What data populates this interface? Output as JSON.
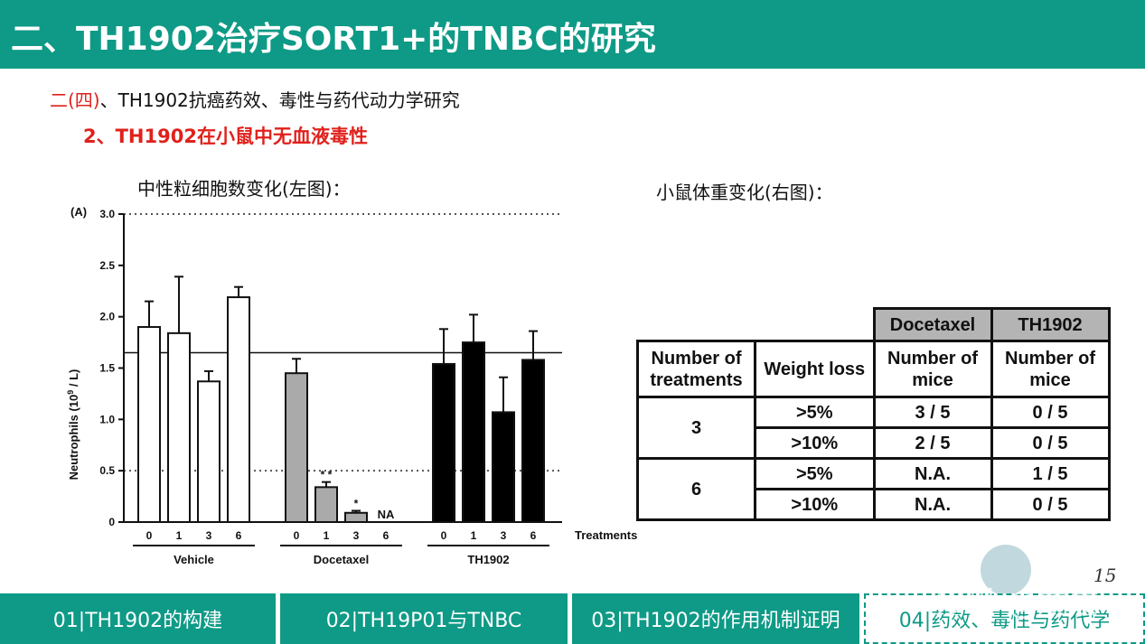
{
  "header": {
    "title": "二、TH1902治疗SORT1+的TNBC的研究"
  },
  "subtitle": {
    "prefix": "二(四)",
    "rest": "、TH1902抗癌药效、毒性与药代动力学研究"
  },
  "subheading": "2、TH1902在小鼠中无血液毒性",
  "left_caption": "中性粒细胞数变化(左图)：",
  "right_caption": "小鼠体重变化(右图)：",
  "chart_data": {
    "type": "bar",
    "panel_label": "(A)",
    "ylabel_main": "Neutrophils (10",
    "ylabel_sup": "9",
    "ylabel_tail": " / L)",
    "xlabel": "Treatments",
    "ylim": [
      0,
      3.0
    ],
    "yticks": [
      "0",
      "0.5",
      "1.0",
      "1.5",
      "2.0",
      "2.5",
      "3.0"
    ],
    "ytick_values": [
      0,
      0.5,
      1.0,
      1.5,
      2.0,
      2.5,
      3.0
    ],
    "reference_solid": 1.65,
    "reference_dotted": [
      0.5,
      3.0
    ],
    "groups": [
      {
        "name": "Vehicle",
        "color": "#ffffff",
        "categories": [
          "0",
          "1",
          "3",
          "6"
        ],
        "values": [
          1.9,
          1.84,
          1.37,
          2.19
        ],
        "errors": [
          0.25,
          0.55,
          0.1,
          0.1
        ],
        "annotations": [
          "",
          "",
          "",
          ""
        ]
      },
      {
        "name": "Docetaxel",
        "color": "#aaaaaa",
        "categories": [
          "0",
          "1",
          "3",
          "6"
        ],
        "values": [
          1.45,
          0.34,
          0.09,
          null
        ],
        "errors": [
          0.14,
          0.05,
          0.02,
          null
        ],
        "annotations": [
          "",
          "* *",
          "*",
          "NA"
        ]
      },
      {
        "name": "TH1902",
        "color": "#000000",
        "categories": [
          "0",
          "1",
          "3",
          "6"
        ],
        "values": [
          1.54,
          1.75,
          1.07,
          1.58
        ],
        "errors": [
          0.34,
          0.27,
          0.34,
          0.28
        ],
        "annotations": [
          "",
          "",
          "",
          ""
        ]
      }
    ]
  },
  "table": {
    "header_top": [
      "Docetaxel",
      "TH1902"
    ],
    "header_col1": "Number of treatments",
    "header_col2": "Weight loss",
    "header_col3": "Number of mice",
    "header_col4": "Number of mice",
    "rows": [
      {
        "treatments": "3",
        "loss": ">5%",
        "docetaxel": "3 / 5",
        "th1902": "0 / 5"
      },
      {
        "treatments": "",
        "loss": ">10%",
        "docetaxel": "2 / 5",
        "th1902": "0 / 5"
      },
      {
        "treatments": "6",
        "loss": ">5%",
        "docetaxel": "N.A.",
        "th1902": "1 / 5"
      },
      {
        "treatments": "",
        "loss": ">10%",
        "docetaxel": "N.A.",
        "th1902": "0 / 5"
      }
    ]
  },
  "page_number": "15",
  "watermark": "知乎 @成成",
  "footer_tabs": [
    {
      "label": "01|TH1902的构建",
      "active": false
    },
    {
      "label": "02|TH19P01与TNBC",
      "active": false
    },
    {
      "label": "03|TH1902的作用机制证明",
      "active": false
    },
    {
      "label": "04|药效、毒性与药代学",
      "active": true
    }
  ],
  "colors": {
    "brand_teal": "#0e9a86",
    "accent_red": "#e0211c",
    "table_shade": "#b4b4b4"
  }
}
